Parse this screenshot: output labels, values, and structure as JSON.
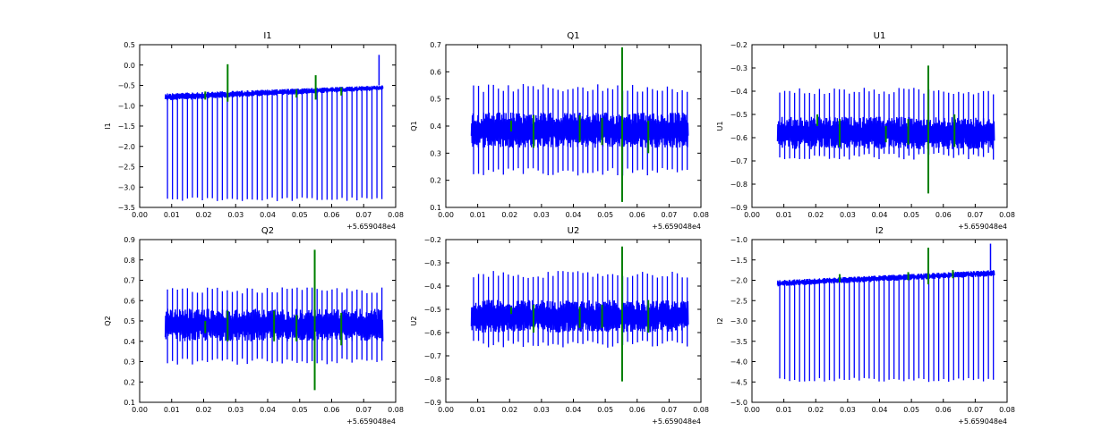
{
  "chart_data": [
    {
      "type": "line",
      "title": "I1",
      "ylabel": "I1",
      "xlim": [
        0.0,
        0.08
      ],
      "ylim": [
        -3.5,
        0.5
      ],
      "x_ticks": [
        "0.00",
        "0.01",
        "0.02",
        "0.03",
        "0.04",
        "0.05",
        "0.06",
        "0.07",
        "0.08"
      ],
      "y_ticks": [
        "0.5",
        "0.0",
        "−0.5",
        "−1.0",
        "−1.5",
        "−2.0",
        "−2.5",
        "−3.0",
        "−3.5"
      ],
      "x_offset": "+5.659048e4",
      "x_range": [
        0.008,
        0.076
      ],
      "baseline": {
        "low": [
          -0.88,
          -0.62
        ],
        "high": [
          -0.7,
          -0.5
        ]
      },
      "spike_min": -3.3,
      "spike_max_end": 0.25,
      "series": [
        {
          "color": "#0000ff"
        },
        {
          "color": "#008000",
          "marks": [
            {
              "x": 0.0275,
              "lo": -0.9,
              "hi": 0.02
            },
            {
              "x": 0.055,
              "lo": -0.85,
              "hi": -0.25
            },
            {
              "x": 0.0205,
              "lo": -0.85,
              "hi": -0.65
            },
            {
              "x": 0.049,
              "lo": -0.8,
              "hi": -0.6
            },
            {
              "x": 0.063,
              "lo": -0.75,
              "hi": -0.55
            }
          ]
        }
      ]
    },
    {
      "type": "line",
      "title": "Q1",
      "ylabel": "Q1",
      "xlim": [
        0.0,
        0.08
      ],
      "ylim": [
        0.1,
        0.7
      ],
      "x_ticks": [
        "0.00",
        "0.01",
        "0.02",
        "0.03",
        "0.04",
        "0.05",
        "0.06",
        "0.07",
        "0.08"
      ],
      "y_ticks": [
        "0.7",
        "0.6",
        "0.5",
        "0.4",
        "0.3",
        "0.2",
        "0.1"
      ],
      "x_offset": "+5.659048e4",
      "x_range": [
        0.008,
        0.076
      ],
      "band": [
        0.32,
        0.45
      ],
      "spike_range": [
        0.23,
        0.54
      ],
      "series": [
        {
          "color": "#0000ff"
        },
        {
          "color": "#008000",
          "marks": [
            {
              "x": 0.0553,
              "lo": 0.12,
              "hi": 0.69
            },
            {
              "x": 0.0275,
              "lo": 0.32,
              "hi": 0.44
            },
            {
              "x": 0.042,
              "lo": 0.34,
              "hi": 0.44
            },
            {
              "x": 0.049,
              "lo": 0.33,
              "hi": 0.43
            },
            {
              "x": 0.0635,
              "lo": 0.3,
              "hi": 0.42
            },
            {
              "x": 0.0205,
              "lo": 0.38,
              "hi": 0.42
            }
          ]
        }
      ]
    },
    {
      "type": "line",
      "title": "U1",
      "ylabel": "U1",
      "xlim": [
        0.0,
        0.08
      ],
      "ylim": [
        -0.9,
        -0.2
      ],
      "x_ticks": [
        "0.00",
        "0.01",
        "0.02",
        "0.03",
        "0.04",
        "0.05",
        "0.06",
        "0.07",
        "0.08"
      ],
      "y_ticks": [
        "−0.2",
        "−0.3",
        "−0.4",
        "−0.5",
        "−0.6",
        "−0.7",
        "−0.8",
        "−0.9"
      ],
      "x_offset": "+5.659048e4",
      "x_range": [
        0.008,
        0.076
      ],
      "band": [
        -0.65,
        -0.51
      ],
      "spike_range": [
        -0.68,
        -0.4
      ],
      "series": [
        {
          "color": "#0000ff"
        },
        {
          "color": "#008000",
          "marks": [
            {
              "x": 0.0553,
              "lo": -0.84,
              "hi": -0.29
            },
            {
              "x": 0.0275,
              "lo": -0.64,
              "hi": -0.52
            },
            {
              "x": 0.042,
              "lo": -0.62,
              "hi": -0.55
            },
            {
              "x": 0.049,
              "lo": -0.63,
              "hi": -0.52
            },
            {
              "x": 0.0635,
              "lo": -0.64,
              "hi": -0.5
            },
            {
              "x": 0.0205,
              "lo": -0.55,
              "hi": -0.5
            }
          ]
        }
      ]
    },
    {
      "type": "line",
      "title": "Q2",
      "ylabel": "Q2",
      "xlim": [
        0.0,
        0.08
      ],
      "ylim": [
        0.1,
        0.9
      ],
      "x_ticks": [
        "0.00",
        "0.01",
        "0.02",
        "0.03",
        "0.04",
        "0.05",
        "0.06",
        "0.07",
        "0.08"
      ],
      "y_ticks": [
        "0.9",
        "0.8",
        "0.7",
        "0.6",
        "0.5",
        "0.4",
        "0.3",
        "0.2",
        "0.1"
      ],
      "x_offset": "+5.659048e4",
      "x_range": [
        0.008,
        0.076
      ],
      "band": [
        0.4,
        0.56
      ],
      "spike_range": [
        0.3,
        0.65
      ],
      "series": [
        {
          "color": "#0000ff"
        },
        {
          "color": "#008000",
          "marks": [
            {
              "x": 0.0547,
              "lo": 0.16,
              "hi": 0.85
            },
            {
              "x": 0.0275,
              "lo": 0.4,
              "hi": 0.55
            },
            {
              "x": 0.042,
              "lo": 0.4,
              "hi": 0.55
            },
            {
              "x": 0.049,
              "lo": 0.4,
              "hi": 0.53
            },
            {
              "x": 0.063,
              "lo": 0.38,
              "hi": 0.54
            },
            {
              "x": 0.0205,
              "lo": 0.44,
              "hi": 0.5
            }
          ]
        }
      ]
    },
    {
      "type": "line",
      "title": "U2",
      "ylabel": "U2",
      "xlim": [
        0.0,
        0.08
      ],
      "ylim": [
        -0.9,
        -0.2
      ],
      "x_ticks": [
        "0.00",
        "0.01",
        "0.02",
        "0.03",
        "0.04",
        "0.05",
        "0.06",
        "0.07",
        "0.08"
      ],
      "y_ticks": [
        "−0.2",
        "−0.3",
        "−0.4",
        "−0.5",
        "−0.6",
        "−0.7",
        "−0.8",
        "−0.9"
      ],
      "x_offset": "+5.659048e4",
      "x_range": [
        0.008,
        0.076
      ],
      "band": [
        -0.6,
        -0.46
      ],
      "spike_range": [
        -0.65,
        -0.35
      ],
      "series": [
        {
          "color": "#0000ff"
        },
        {
          "color": "#008000",
          "marks": [
            {
              "x": 0.0553,
              "lo": -0.81,
              "hi": -0.23
            },
            {
              "x": 0.0275,
              "lo": -0.6,
              "hi": -0.48
            },
            {
              "x": 0.042,
              "lo": -0.58,
              "hi": -0.49
            },
            {
              "x": 0.049,
              "lo": -0.58,
              "hi": -0.48
            },
            {
              "x": 0.0635,
              "lo": -0.6,
              "hi": -0.46
            },
            {
              "x": 0.0205,
              "lo": -0.52,
              "hi": -0.49
            }
          ]
        }
      ]
    },
    {
      "type": "line",
      "title": "I2",
      "ylabel": "I2",
      "xlim": [
        0.0,
        0.08
      ],
      "ylim": [
        -5.0,
        -1.0
      ],
      "x_ticks": [
        "0.00",
        "0.01",
        "0.02",
        "0.03",
        "0.04",
        "0.05",
        "0.06",
        "0.07",
        "0.08"
      ],
      "y_ticks": [
        "−1.0",
        "−1.5",
        "−2.0",
        "−2.5",
        "−3.0",
        "−3.5",
        "−4.0",
        "−4.5",
        "−5.0"
      ],
      "x_offset": "+5.659048e4",
      "x_range": [
        0.008,
        0.076
      ],
      "baseline": {
        "low": [
          -2.15,
          -1.9
        ],
        "high": [
          -2.0,
          -1.75
        ]
      },
      "spike_min": -4.45,
      "spike_max_end": -1.1,
      "series": [
        {
          "color": "#0000ff"
        },
        {
          "color": "#008000",
          "marks": [
            {
              "x": 0.0553,
              "lo": -2.1,
              "hi": -1.2
            },
            {
              "x": 0.0275,
              "lo": -2.05,
              "hi": -1.85
            },
            {
              "x": 0.049,
              "lo": -2.0,
              "hi": -1.8
            },
            {
              "x": 0.063,
              "lo": -1.95,
              "hi": -1.75
            }
          ]
        }
      ]
    }
  ]
}
